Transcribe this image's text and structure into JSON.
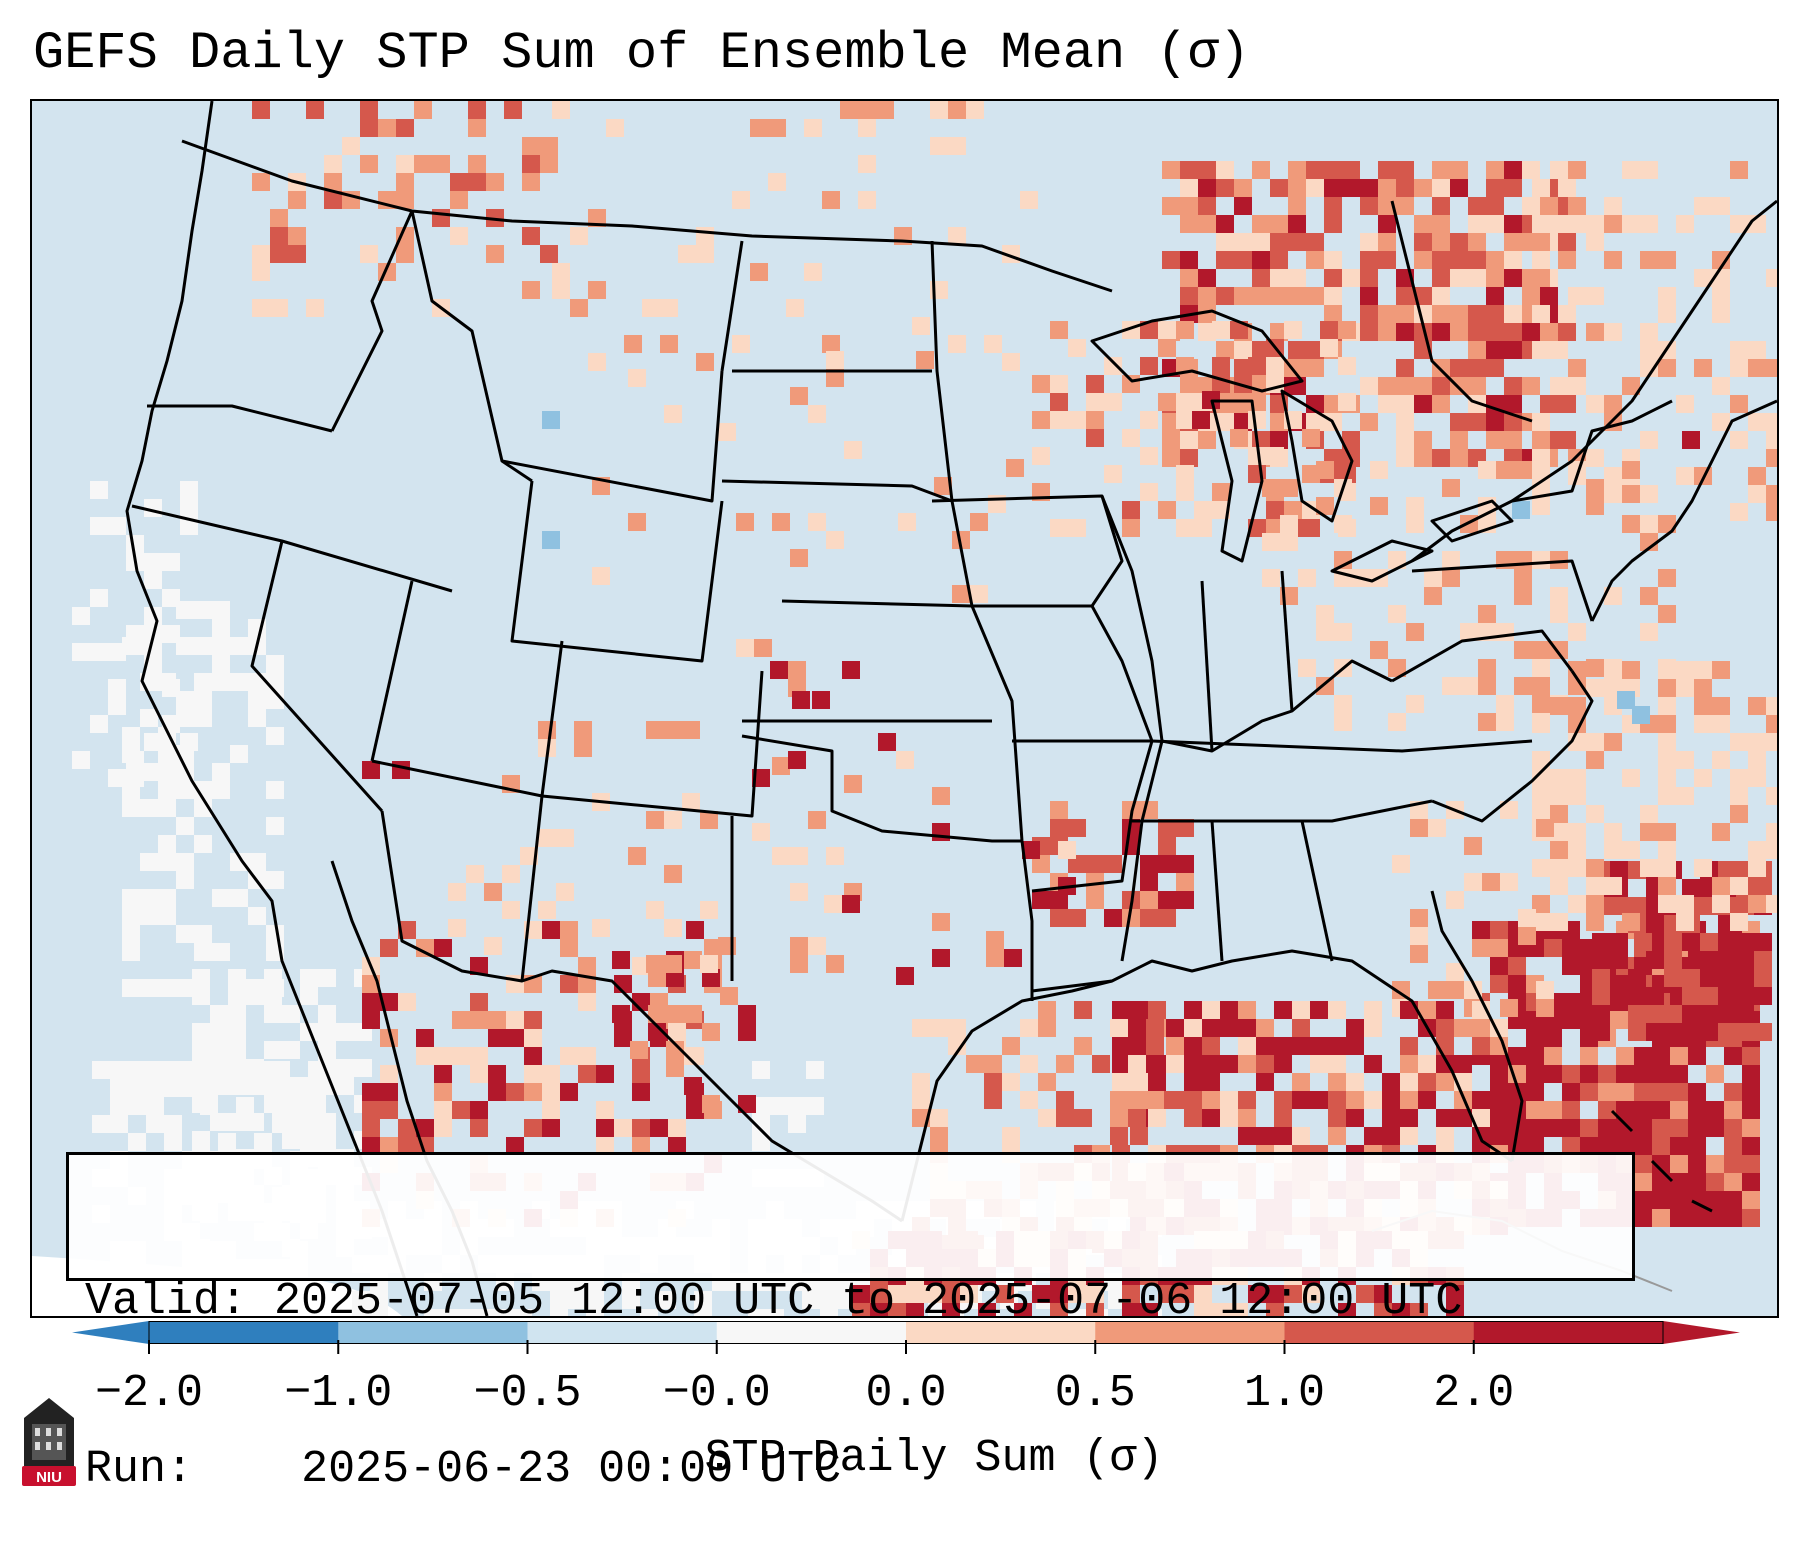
{
  "title": "GEFS Daily STP Sum of Ensemble Mean (σ)",
  "info_box": {
    "valid_label": "Valid:",
    "valid_value": "2025-07-05 12:00 UTC to 2025-07-06 12:00 UTC",
    "run_label": "Run:",
    "run_value": "2025-06-23 00:00 UTC"
  },
  "colorbar": {
    "label": "STP Daily Sum (σ)",
    "tick_labels": [
      "−2.0",
      "−1.0",
      "−0.5",
      "−0.0",
      "0.0",
      "0.5",
      "1.0",
      "2.0"
    ],
    "colors": [
      "#2f7fbe",
      "#8fc1e0",
      "#d0e4f0",
      "#f7f7f7",
      "#fbd9c4",
      "#f09a7a",
      "#d5584c",
      "#b2182b"
    ],
    "extend": "both"
  },
  "map_colors": {
    "ocean_background": "#d3e4ef",
    "neutral": "#f7f7f7",
    "light_red": "#fbd9c4",
    "medium_red": "#f09a7a",
    "strong_red": "#d5584c",
    "dark_red": "#b2182b",
    "light_blue": "#8fc1e0"
  },
  "logo": {
    "text": "NIU",
    "color": "#c8102e"
  }
}
